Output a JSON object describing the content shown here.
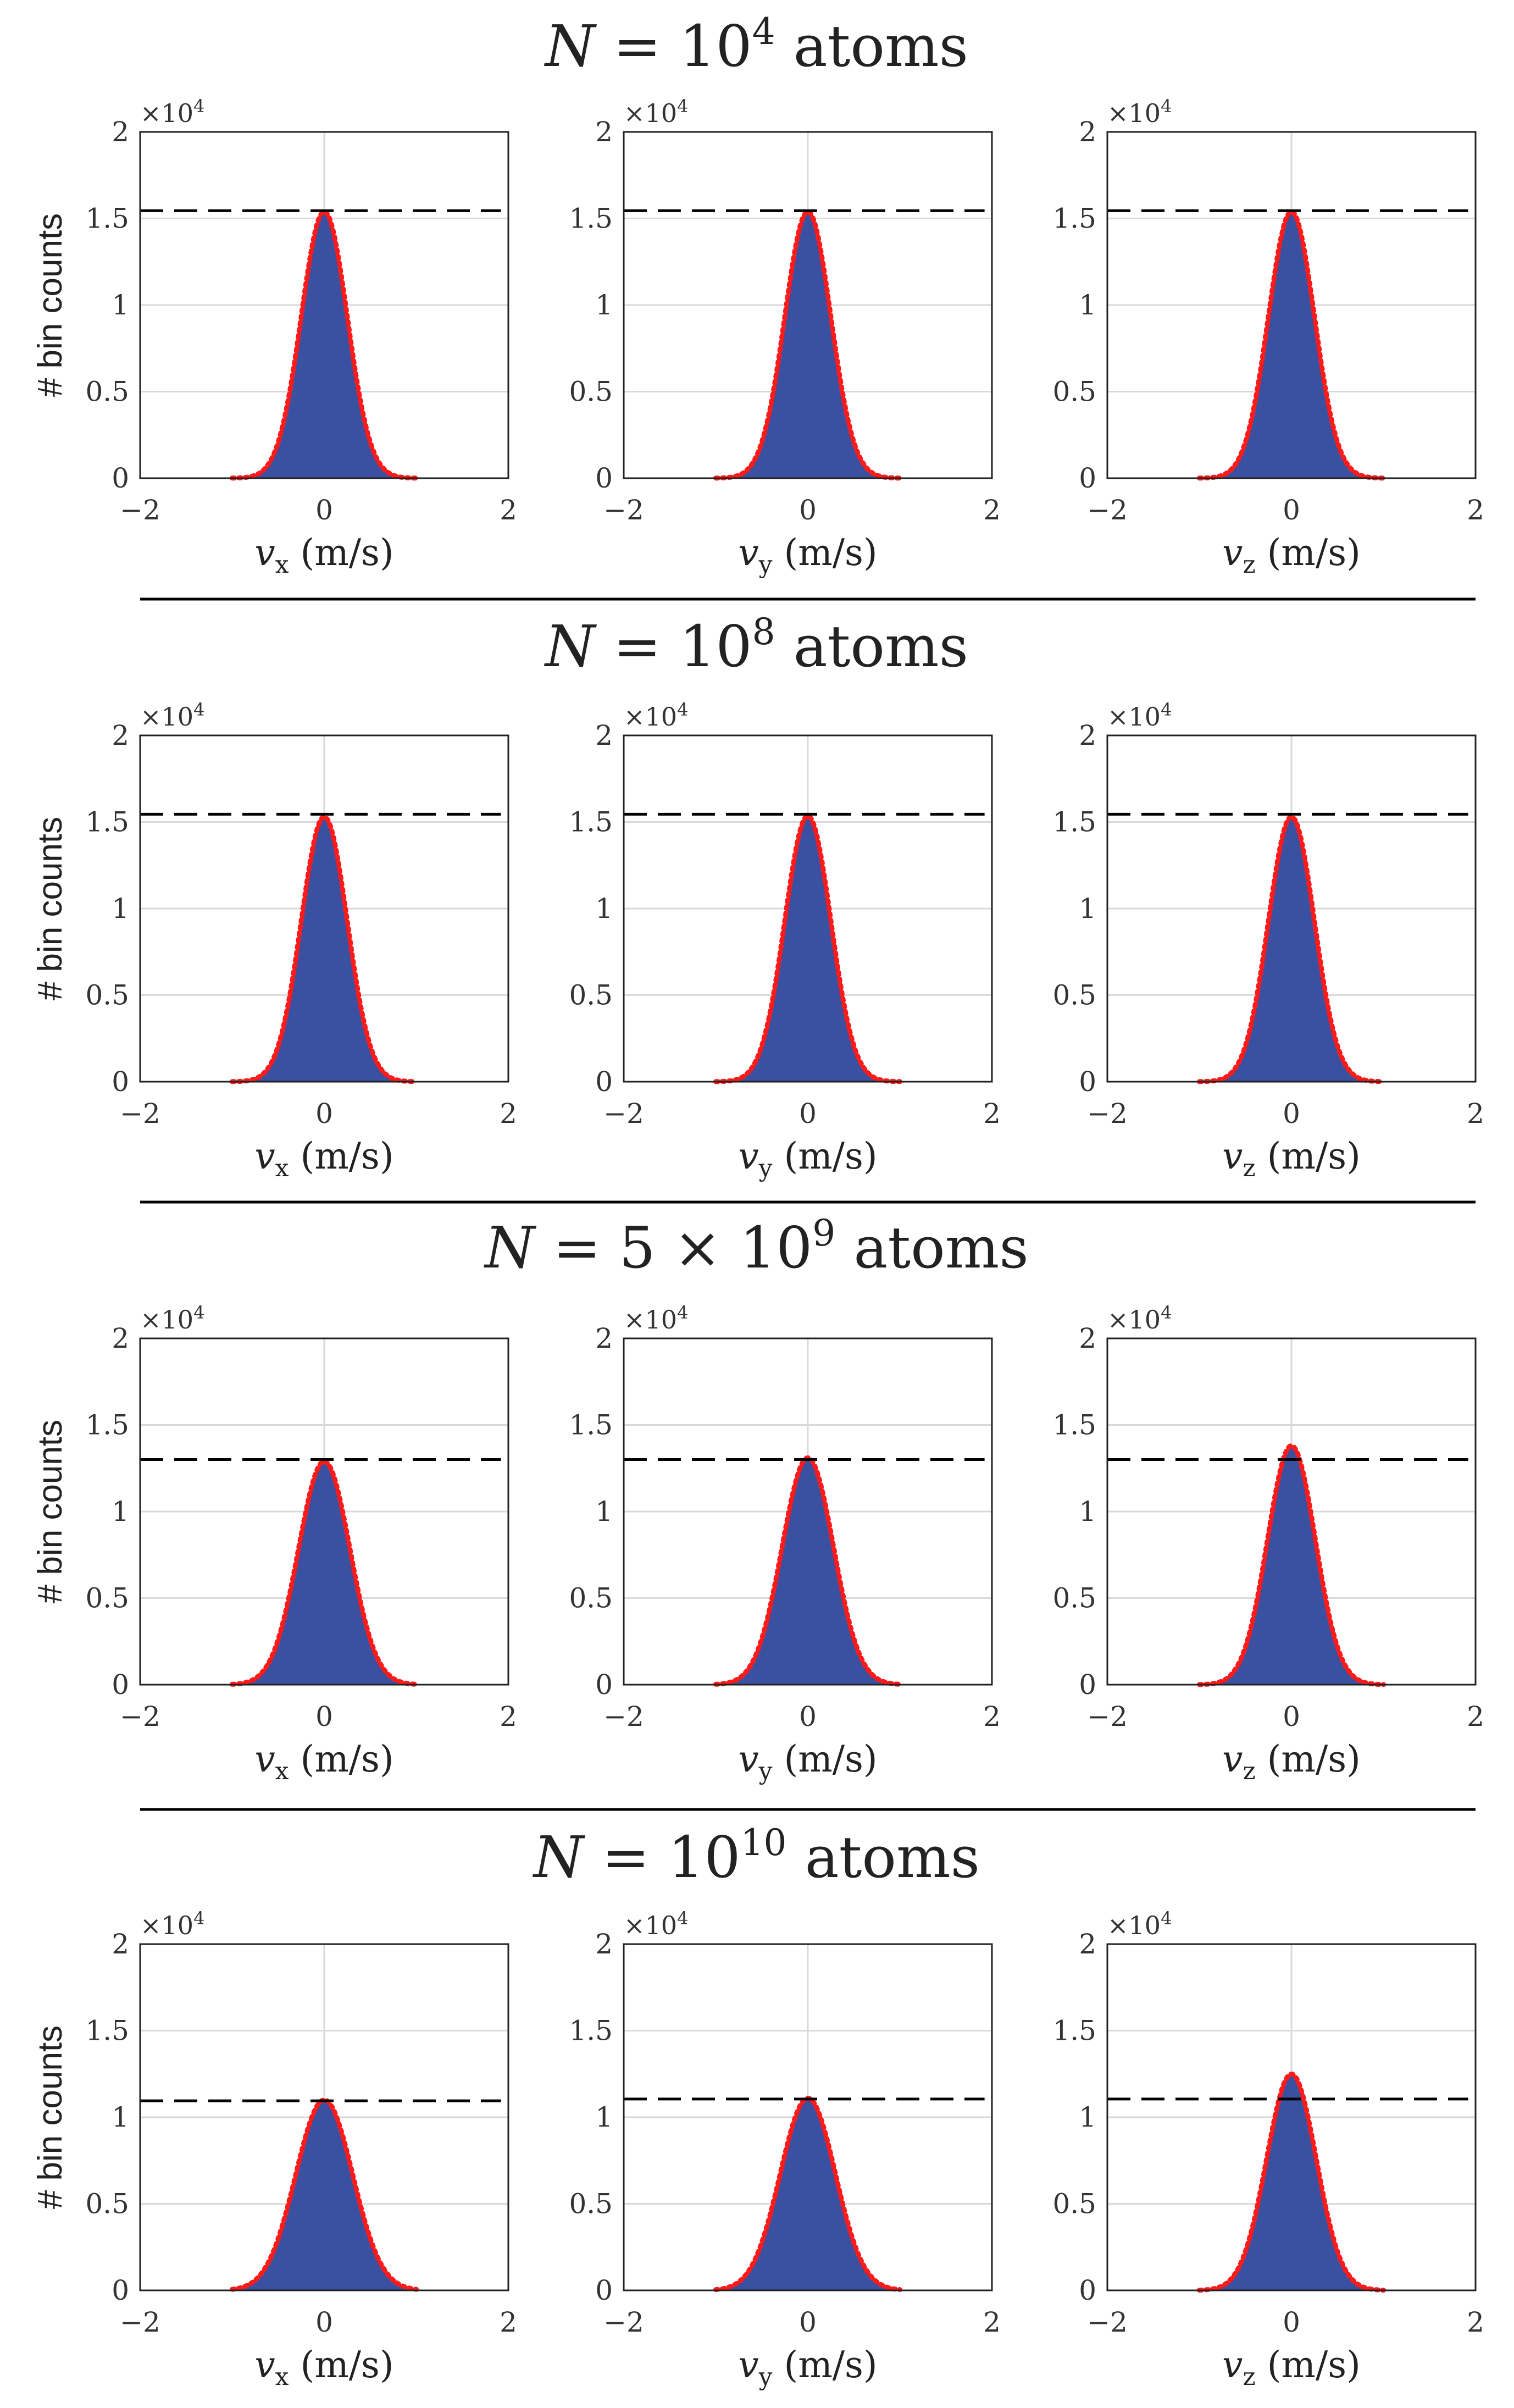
{
  "figure": {
    "ylabel": "# bin counts",
    "colors": {
      "bars": "#3a50a0",
      "fit": "#ff1a1a",
      "reference": "#000000",
      "grid": "#d9d9d9",
      "axes": "#222222"
    }
  },
  "chart_data": [
    {
      "type": "bar",
      "row_title": {
        "prefix": "N",
        "text": " = 10",
        "exp": "4",
        "suffix": " atoms"
      },
      "panels": [
        {
          "variable": "v",
          "subscript": "x",
          "unit": "(m/s)",
          "xlim": [
            -2,
            2
          ],
          "ylim": [
            0,
            20000
          ],
          "multiplier": "×10",
          "multiplier_exp": "4",
          "xticks": [
            "−2",
            "0",
            "2"
          ],
          "yticks": [
            "0",
            "0.5",
            "1",
            "1.5",
            "2"
          ],
          "peak": 15400,
          "sigma": 0.25,
          "x_range": [
            -1,
            1
          ],
          "reference_line": 15450
        },
        {
          "variable": "v",
          "subscript": "y",
          "unit": "(m/s)",
          "xlim": [
            -2,
            2
          ],
          "ylim": [
            0,
            20000
          ],
          "multiplier": "×10",
          "multiplier_exp": "4",
          "xticks": [
            "−2",
            "0",
            "2"
          ],
          "yticks": [
            "0",
            "0.5",
            "1",
            "1.5",
            "2"
          ],
          "peak": 15400,
          "sigma": 0.25,
          "x_range": [
            -1,
            1
          ],
          "reference_line": 15450
        },
        {
          "variable": "v",
          "subscript": "z",
          "unit": "(m/s)",
          "xlim": [
            -2,
            2
          ],
          "ylim": [
            0,
            20000
          ],
          "multiplier": "×10",
          "multiplier_exp": "4",
          "xticks": [
            "−2",
            "0",
            "2"
          ],
          "yticks": [
            "0",
            "0.5",
            "1",
            "1.5",
            "2"
          ],
          "peak": 15400,
          "sigma": 0.25,
          "x_range": [
            -1,
            1
          ],
          "reference_line": 15450
        }
      ]
    },
    {
      "type": "bar",
      "row_title": {
        "prefix": "N",
        "text": " = 10",
        "exp": "8",
        "suffix": " atoms"
      },
      "panels": [
        {
          "variable": "v",
          "subscript": "x",
          "unit": "(m/s)",
          "xlim": [
            -2,
            2
          ],
          "ylim": [
            0,
            20000
          ],
          "multiplier": "×10",
          "multiplier_exp": "4",
          "xticks": [
            "−2",
            "0",
            "2"
          ],
          "yticks": [
            "0",
            "0.5",
            "1",
            "1.5",
            "2"
          ],
          "peak": 15300,
          "sigma": 0.25,
          "x_range": [
            -1,
            1
          ],
          "reference_line": 15450
        },
        {
          "variable": "v",
          "subscript": "y",
          "unit": "(m/s)",
          "xlim": [
            -2,
            2
          ],
          "ylim": [
            0,
            20000
          ],
          "multiplier": "×10",
          "multiplier_exp": "4",
          "xticks": [
            "−2",
            "0",
            "2"
          ],
          "yticks": [
            "0",
            "0.5",
            "1",
            "1.5",
            "2"
          ],
          "peak": 15350,
          "sigma": 0.25,
          "x_range": [
            -1,
            1
          ],
          "reference_line": 15450
        },
        {
          "variable": "v",
          "subscript": "z",
          "unit": "(m/s)",
          "xlim": [
            -2,
            2
          ],
          "ylim": [
            0,
            20000
          ],
          "multiplier": "×10",
          "multiplier_exp": "4",
          "xticks": [
            "−2",
            "0",
            "2"
          ],
          "yticks": [
            "0",
            "0.5",
            "1",
            "1.5",
            "2"
          ],
          "peak": 15300,
          "sigma": 0.25,
          "x_range": [
            -1,
            1
          ],
          "reference_line": 15450
        }
      ]
    },
    {
      "type": "bar",
      "row_title": {
        "prefix": "N",
        "text": " = 5 × 10",
        "exp": "9",
        "suffix": " atoms"
      },
      "panels": [
        {
          "variable": "v",
          "subscript": "x",
          "unit": "(m/s)",
          "xlim": [
            -2,
            2
          ],
          "ylim": [
            0,
            20000
          ],
          "multiplier": "×10",
          "multiplier_exp": "4",
          "xticks": [
            "−2",
            "0",
            "2"
          ],
          "yticks": [
            "0",
            "0.5",
            "1",
            "1.5",
            "2"
          ],
          "peak": 12900,
          "sigma": 0.28,
          "x_range": [
            -1,
            1
          ],
          "reference_line": 13000
        },
        {
          "variable": "v",
          "subscript": "y",
          "unit": "(m/s)",
          "xlim": [
            -2,
            2
          ],
          "ylim": [
            0,
            20000
          ],
          "multiplier": "×10",
          "multiplier_exp": "4",
          "xticks": [
            "−2",
            "0",
            "2"
          ],
          "yticks": [
            "0",
            "0.5",
            "1",
            "1.5",
            "2"
          ],
          "peak": 13100,
          "sigma": 0.28,
          "x_range": [
            -1,
            1
          ],
          "reference_line": 13000
        },
        {
          "variable": "v",
          "subscript": "z",
          "unit": "(m/s)",
          "xlim": [
            -2,
            2
          ],
          "ylim": [
            0,
            20000
          ],
          "multiplier": "×10",
          "multiplier_exp": "4",
          "xticks": [
            "−2",
            "0",
            "2"
          ],
          "yticks": [
            "0",
            "0.5",
            "1",
            "1.5",
            "2"
          ],
          "peak": 13800,
          "sigma": 0.26,
          "x_range": [
            -1,
            1
          ],
          "reference_line": 13000
        }
      ]
    },
    {
      "type": "bar",
      "row_title": {
        "prefix": "N",
        "text": " = 10",
        "exp": "10",
        "suffix": " atoms"
      },
      "panels": [
        {
          "variable": "v",
          "subscript": "x",
          "unit": "(m/s)",
          "xlim": [
            -2,
            2
          ],
          "ylim": [
            0,
            20000
          ],
          "multiplier": "×10",
          "multiplier_exp": "4",
          "xticks": [
            "−2",
            "0",
            "2"
          ],
          "yticks": [
            "0",
            "0.5",
            "1",
            "1.5",
            "2"
          ],
          "peak": 11000,
          "sigma": 0.31,
          "x_range": [
            -1,
            1
          ],
          "reference_line": 10950
        },
        {
          "variable": "v",
          "subscript": "y",
          "unit": "(m/s)",
          "xlim": [
            -2,
            2
          ],
          "ylim": [
            0,
            20000
          ],
          "multiplier": "×10",
          "multiplier_exp": "4",
          "xticks": [
            "−2",
            "0",
            "2"
          ],
          "yticks": [
            "0",
            "0.5",
            "1",
            "1.5",
            "2"
          ],
          "peak": 11100,
          "sigma": 0.3,
          "x_range": [
            -1,
            1
          ],
          "reference_line": 11050
        },
        {
          "variable": "v",
          "subscript": "z",
          "unit": "(m/s)",
          "xlim": [
            -2,
            2
          ],
          "ylim": [
            0,
            20000
          ],
          "multiplier": "×10",
          "multiplier_exp": "4",
          "xticks": [
            "−2",
            "0",
            "2"
          ],
          "yticks": [
            "0",
            "0.5",
            "1",
            "1.5",
            "2"
          ],
          "peak": 12500,
          "sigma": 0.27,
          "x_range": [
            -1,
            1
          ],
          "reference_line": 11050
        }
      ]
    }
  ]
}
